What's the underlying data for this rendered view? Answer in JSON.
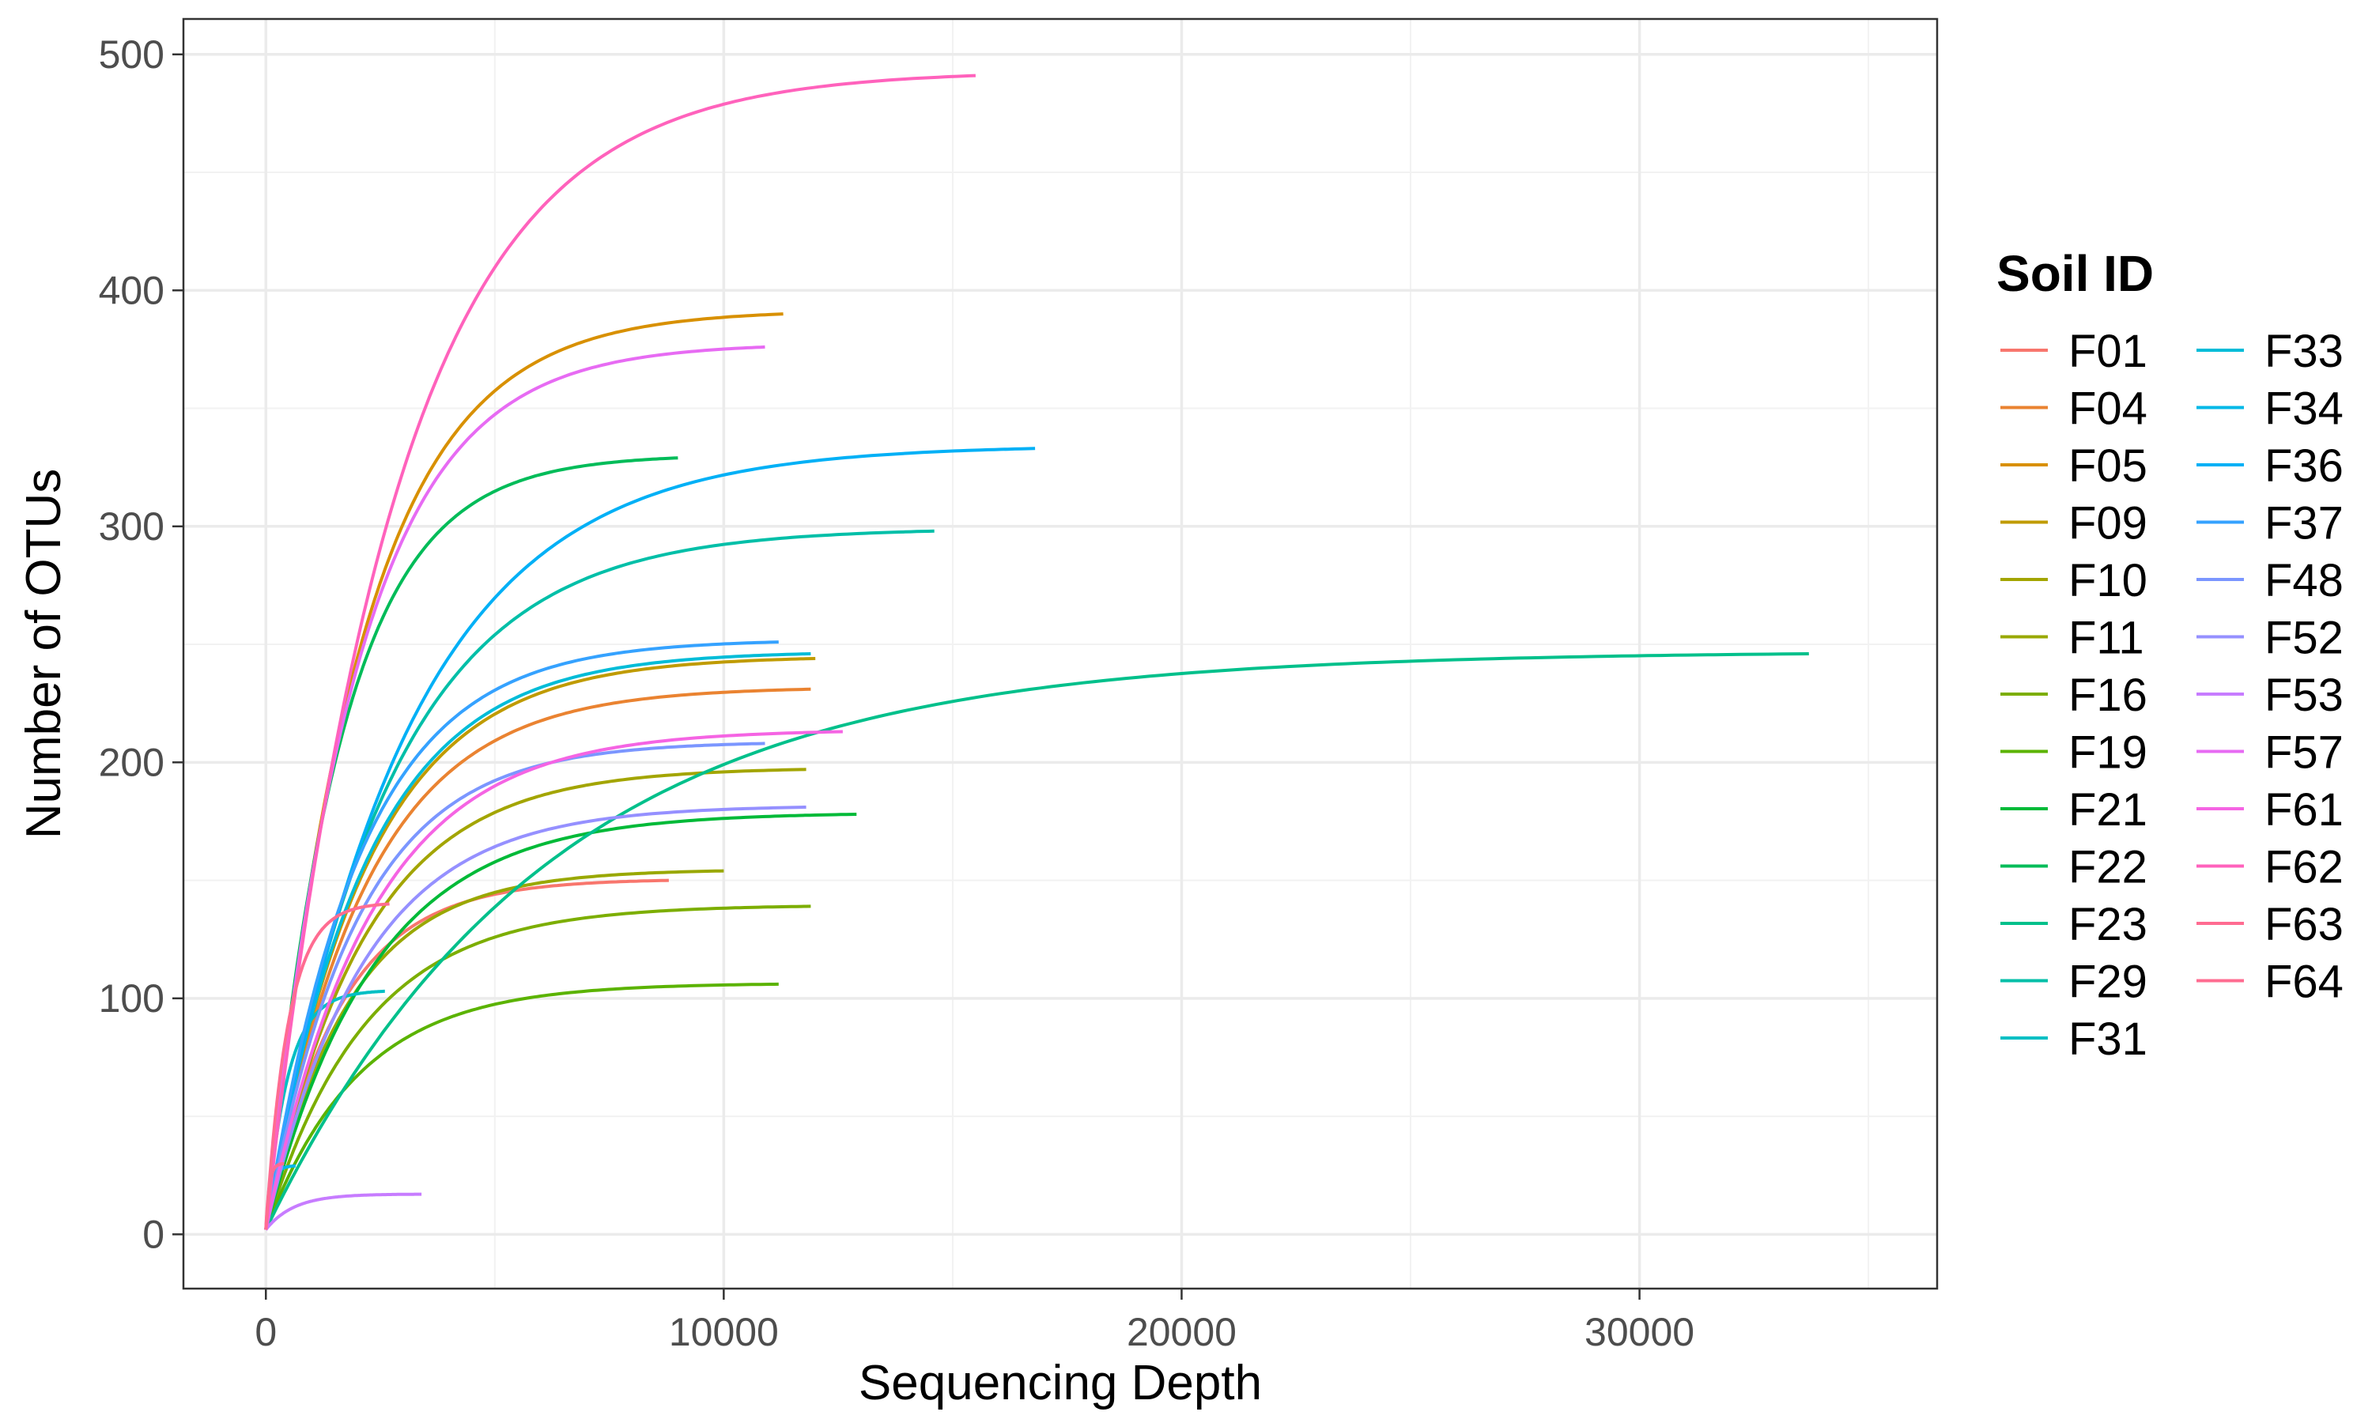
{
  "chart_data": {
    "type": "line",
    "title": "",
    "xlabel": "Sequencing Depth",
    "ylabel": "Number of OTUs",
    "xlim": [
      -1800,
      36500
    ],
    "ylim": [
      -23,
      515
    ],
    "x_ticks": [
      0,
      10000,
      20000,
      30000
    ],
    "y_ticks": [
      0,
      100,
      200,
      300,
      400,
      500
    ],
    "grid": true,
    "legend": {
      "title": "Soil ID",
      "position": "right",
      "columns": 2
    },
    "series": [
      {
        "name": "F01",
        "color": "#F8766D",
        "x_max": 8800,
        "y_max": 150
      },
      {
        "name": "F04",
        "color": "#EA8331",
        "x_max": 11900,
        "y_max": 231
      },
      {
        "name": "F05",
        "color": "#D89000",
        "x_max": 11300,
        "y_max": 390
      },
      {
        "name": "F09",
        "color": "#C09B00",
        "x_max": 12000,
        "y_max": 244
      },
      {
        "name": "F10",
        "color": "#A3A500",
        "x_max": 11800,
        "y_max": 197
      },
      {
        "name": "F11",
        "color": "#99A800",
        "x_max": 10000,
        "y_max": 154
      },
      {
        "name": "F16",
        "color": "#7CAE00",
        "x_max": 11900,
        "y_max": 139
      },
      {
        "name": "F19",
        "color": "#5BB300",
        "x_max": 11200,
        "y_max": 106
      },
      {
        "name": "F21",
        "color": "#00BA38",
        "x_max": 12900,
        "y_max": 178
      },
      {
        "name": "F22",
        "color": "#00BC59",
        "x_max": 9000,
        "y_max": 329
      },
      {
        "name": "F23",
        "color": "#00C08B",
        "x_max": 33700,
        "y_max": 246
      },
      {
        "name": "F29",
        "color": "#00BFA8",
        "x_max": 14600,
        "y_max": 298
      },
      {
        "name": "F31",
        "color": "#00BFC4",
        "x_max": 2600,
        "y_max": 103
      },
      {
        "name": "F33",
        "color": "#00BCD8",
        "x_max": 11900,
        "y_max": 246
      },
      {
        "name": "F34",
        "color": "#00B8E7",
        "x_max": 650,
        "y_max": 29
      },
      {
        "name": "F36",
        "color": "#00B0F6",
        "x_max": 16800,
        "y_max": 333
      },
      {
        "name": "F37",
        "color": "#35A2FF",
        "x_max": 11200,
        "y_max": 251
      },
      {
        "name": "F48",
        "color": "#7B96FF",
        "x_max": 10900,
        "y_max": 208
      },
      {
        "name": "F52",
        "color": "#9590FF",
        "x_max": 11800,
        "y_max": 181
      },
      {
        "name": "F53",
        "color": "#C77CFF",
        "x_max": 3400,
        "y_max": 17
      },
      {
        "name": "F57",
        "color": "#E76BF3",
        "x_max": 10900,
        "y_max": 376
      },
      {
        "name": "F61",
        "color": "#F564E3",
        "x_max": 12600,
        "y_max": 213
      },
      {
        "name": "F62",
        "color": "#FF62BC",
        "x_max": 15500,
        "y_max": 491
      },
      {
        "name": "F63",
        "color": "#FF6C91",
        "x_max": 2700,
        "y_max": 140
      },
      {
        "name": "F64",
        "color": "#FF6C91",
        "x_max": 400,
        "y_max": 30
      }
    ]
  }
}
